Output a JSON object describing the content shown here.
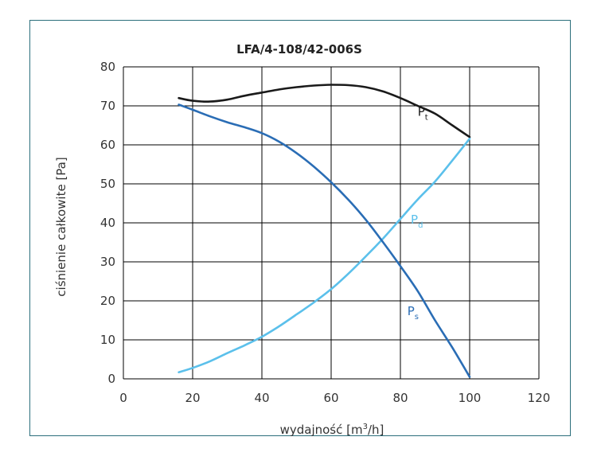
{
  "chart_data": {
    "type": "line",
    "title": "LFA/4-108/42-006S",
    "xlabel": "wydajność [m³/h]",
    "ylabel": "ciśnienie całkowite [Pa]",
    "xlim": [
      0,
      120
    ],
    "ylim": [
      0,
      80
    ],
    "xticks": [
      0,
      20,
      40,
      60,
      80,
      100,
      120
    ],
    "yticks": [
      0,
      10,
      20,
      30,
      40,
      50,
      60,
      70,
      80
    ],
    "grid": true,
    "series": [
      {
        "name": "Pt",
        "label_main": "P",
        "label_sub": "t",
        "color": "#1a1a1a",
        "x": [
          16,
          20,
          25,
          30,
          35,
          40,
          45,
          50,
          55,
          60,
          65,
          70,
          75,
          80,
          85,
          90,
          95,
          100
        ],
        "y": [
          72,
          71.3,
          71.1,
          71.6,
          72.6,
          73.4,
          74.2,
          74.8,
          75.2,
          75.4,
          75.3,
          74.8,
          73.7,
          72,
          70,
          68,
          65,
          62
        ]
      },
      {
        "name": "Pd",
        "label_main": "P",
        "label_sub": "d",
        "color": "#5bc0eb",
        "x": [
          16,
          20,
          25,
          30,
          35,
          40,
          45,
          50,
          55,
          60,
          65,
          70,
          75,
          80,
          85,
          90,
          95,
          100
        ],
        "y": [
          1.7,
          2.8,
          4.5,
          6.6,
          8.6,
          10.8,
          13.5,
          16.5,
          19.6,
          23,
          27,
          31.4,
          36,
          41,
          46,
          50.6,
          56,
          61.6
        ]
      },
      {
        "name": "Ps",
        "label_main": "P",
        "label_sub": "s",
        "color": "#2a6db5",
        "x": [
          16,
          20,
          25,
          30,
          35,
          40,
          45,
          50,
          55,
          60,
          65,
          70,
          75,
          80,
          85,
          90,
          95,
          100
        ],
        "y": [
          70.3,
          69,
          67.3,
          65.8,
          64.5,
          63,
          60.8,
          57.9,
          54.4,
          50.4,
          45.9,
          40.8,
          35,
          28.9,
          22.5,
          15,
          8,
          0.5
        ]
      }
    ]
  }
}
